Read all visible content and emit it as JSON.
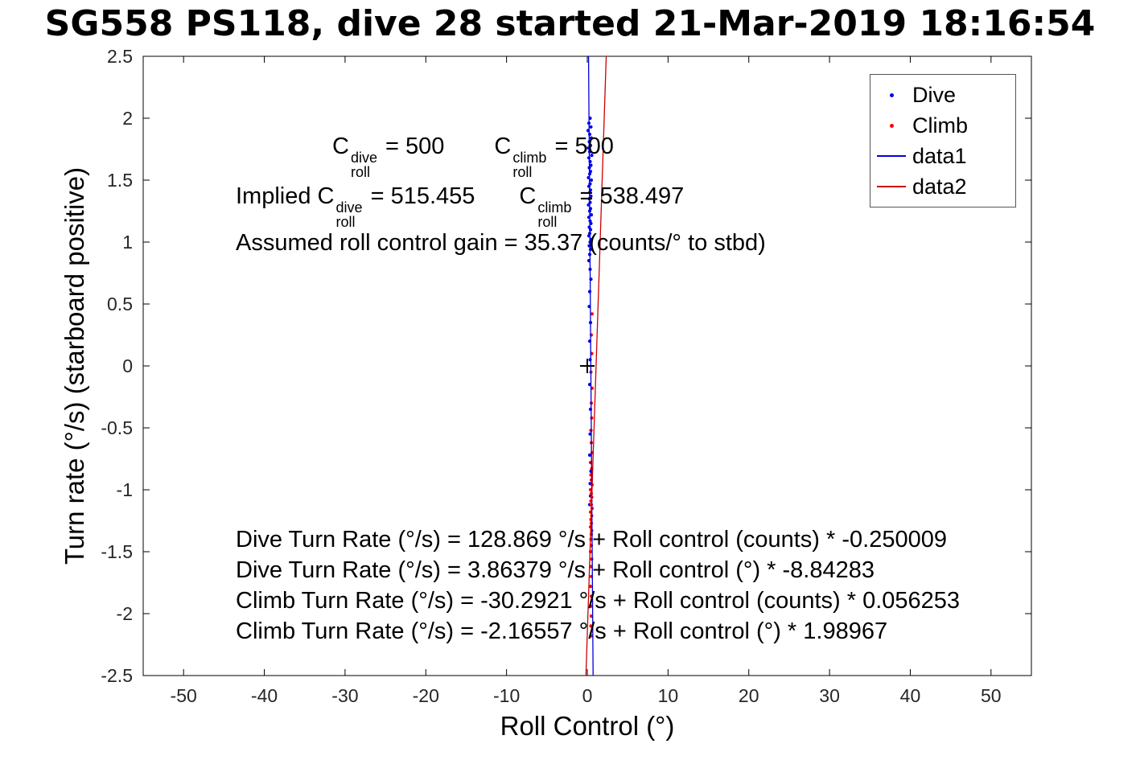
{
  "chart_data": {
    "type": "scatter",
    "title": "SG558 PS118, dive 28 started 21-Mar-2019 18:16:54",
    "xlabel": "Roll Control (°)",
    "ylabel": "Turn rate (°/s) (starboard positive)",
    "xlim": [
      -55,
      55
    ],
    "ylim": [
      -2.5,
      2.5
    ],
    "xticks": [
      -50,
      -40,
      -30,
      -20,
      -10,
      0,
      10,
      20,
      30,
      40,
      50
    ],
    "yticks": [
      -2.5,
      -2,
      -1.5,
      -1,
      -0.5,
      0,
      0.5,
      1,
      1.5,
      2,
      2.5
    ],
    "grid": false,
    "legend_position": "top-right",
    "origin_marker": {
      "x": 0,
      "y": 0,
      "symbol": "+",
      "color": "#000000"
    },
    "series": [
      {
        "name": "Dive",
        "kind": "scatter",
        "color": "#0000ee",
        "points": [
          [
            0.35,
            2.0
          ],
          [
            0.2,
            1.96
          ],
          [
            0.45,
            1.93
          ],
          [
            0.1,
            1.9
          ],
          [
            0.3,
            1.87
          ],
          [
            0.5,
            1.84
          ],
          [
            0.25,
            1.81
          ],
          [
            0.4,
            1.78
          ],
          [
            0.15,
            1.76
          ],
          [
            0.3,
            1.73
          ],
          [
            0.55,
            1.7
          ],
          [
            0.2,
            1.68
          ],
          [
            0.35,
            1.65
          ],
          [
            0.45,
            1.62
          ],
          [
            0.25,
            1.6
          ],
          [
            0.4,
            1.57
          ],
          [
            0.3,
            1.55
          ],
          [
            0.15,
            1.52
          ],
          [
            0.5,
            1.5
          ],
          [
            0.35,
            1.47
          ],
          [
            0.2,
            1.45
          ],
          [
            0.4,
            1.42
          ],
          [
            0.3,
            1.4
          ],
          [
            0.45,
            1.37
          ],
          [
            0.25,
            1.35
          ],
          [
            0.35,
            1.32
          ],
          [
            0.15,
            1.3
          ],
          [
            0.4,
            1.27
          ],
          [
            0.3,
            1.25
          ],
          [
            0.5,
            1.22
          ],
          [
            0.2,
            1.2
          ],
          [
            0.35,
            1.17
          ],
          [
            0.45,
            1.15
          ],
          [
            0.25,
            1.12
          ],
          [
            0.4,
            1.1
          ],
          [
            0.3,
            1.07
          ],
          [
            0.2,
            1.05
          ],
          [
            0.45,
            1.02
          ],
          [
            0.35,
            1.0
          ],
          [
            0.25,
            0.97
          ],
          [
            0.4,
            0.94
          ],
          [
            0.3,
            0.9
          ],
          [
            0.2,
            0.85
          ],
          [
            0.35,
            0.78
          ],
          [
            0.45,
            0.7
          ],
          [
            0.3,
            0.6
          ],
          [
            0.25,
            0.48
          ],
          [
            0.4,
            0.35
          ],
          [
            0.3,
            0.2
          ],
          [
            0.35,
            0.05
          ],
          [
            0.3,
            -0.15
          ],
          [
            0.4,
            -0.35
          ],
          [
            0.35,
            -0.55
          ],
          [
            0.3,
            -0.72
          ],
          [
            0.45,
            -0.85
          ],
          [
            0.35,
            -0.95
          ],
          [
            0.4,
            -1.05
          ],
          [
            0.3,
            -1.12
          ]
        ]
      },
      {
        "name": "Climb",
        "kind": "scatter",
        "color": "#ff0000",
        "points": [
          [
            0.6,
            0.42
          ],
          [
            0.5,
            0.25
          ],
          [
            0.55,
            0.1
          ],
          [
            0.45,
            -0.05
          ],
          [
            0.6,
            -0.18
          ],
          [
            0.5,
            -0.3
          ],
          [
            0.55,
            -0.42
          ],
          [
            0.45,
            -0.52
          ],
          [
            0.5,
            -0.62
          ],
          [
            0.6,
            -0.7
          ],
          [
            0.4,
            -0.78
          ],
          [
            0.55,
            -0.83
          ],
          [
            0.45,
            -0.88
          ],
          [
            0.5,
            -0.92
          ],
          [
            0.6,
            -0.96
          ],
          [
            0.4,
            -1.0
          ],
          [
            0.5,
            -1.03
          ],
          [
            0.55,
            -1.06
          ],
          [
            0.45,
            -1.09
          ],
          [
            0.5,
            -1.12
          ],
          [
            0.6,
            -1.15
          ],
          [
            0.4,
            -1.18
          ],
          [
            0.55,
            -1.21
          ],
          [
            0.45,
            -1.24
          ],
          [
            0.5,
            -1.27
          ],
          [
            0.4,
            -1.3
          ],
          [
            0.55,
            -1.33
          ],
          [
            0.5,
            -1.36
          ],
          [
            0.45,
            -1.4
          ],
          [
            0.5,
            -1.45
          ],
          [
            0.4,
            -1.5
          ],
          [
            0.55,
            -1.56
          ],
          [
            0.45,
            -1.62
          ],
          [
            0.5,
            -1.7
          ],
          [
            0.4,
            -1.78
          ],
          [
            0.5,
            -1.86
          ],
          [
            0.45,
            -1.94
          ],
          [
            0.5,
            -2.02
          ],
          [
            0.45,
            -2.1
          ],
          [
            0.5,
            -2.18
          ]
        ]
      },
      {
        "name": "data1",
        "kind": "line",
        "color": "#0000dd",
        "slope": -8.84283,
        "intercept": 3.86379
      },
      {
        "name": "data2",
        "kind": "line",
        "color": "#cc0000",
        "slope": 1.98967,
        "intercept": -2.16557
      }
    ]
  },
  "annotations": {
    "c_dive": {
      "base": "C",
      "sup": "dive",
      "sub": "roll",
      "eq": " = 500"
    },
    "c_climb": {
      "base": "C",
      "sup": "climb",
      "sub": "roll",
      "eq": " = 500"
    },
    "implied_prefix": "Implied ",
    "implied_dive": {
      "base": "C",
      "sup": "dive",
      "sub": "roll",
      "eq": " = 515.455"
    },
    "implied_climb": {
      "base": "C",
      "sup": "climb",
      "sub": "roll",
      "eq": " = 538.497"
    },
    "gain_line": "Assumed roll control gain = 35.37 (counts/° to stbd)",
    "fit_lines": [
      "Dive Turn Rate (°/s) = 128.869 °/s + Roll control (counts) * -0.250009",
      "Dive Turn Rate (°/s) = 3.86379 °/s + Roll control (°) * -8.84283",
      "Climb Turn Rate (°/s) = -30.2921 °/s + Roll control (counts) * 0.056253",
      "Climb Turn Rate (°/s) = -2.16557 °/s + Roll control (°) * 1.98967"
    ]
  }
}
